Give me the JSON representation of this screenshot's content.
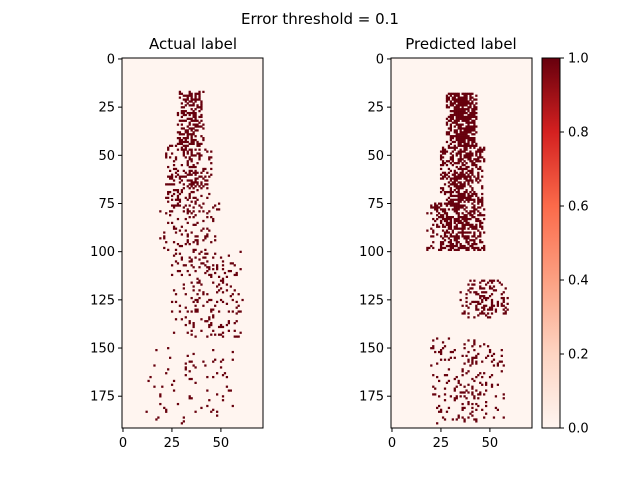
{
  "figure": {
    "suptitle": "Error threshold = 0.1"
  },
  "chart_data": [
    {
      "type": "heatmap",
      "title": "Actual label",
      "xlabel": "",
      "ylabel": "",
      "xlim": [
        0,
        72
      ],
      "ylim": [
        192,
        0
      ],
      "xticks": [
        "0",
        "25",
        "50"
      ],
      "yticks": [
        "0",
        "25",
        "50",
        "75",
        "100",
        "125",
        "150",
        "175"
      ],
      "cmap": "Reds",
      "values_range": [
        0,
        1
      ],
      "label_regions": [
        {
          "x_range": [
            28,
            42
          ],
          "y_range": [
            17,
            45
          ],
          "value": 1,
          "density": "dense"
        },
        {
          "x_range": [
            22,
            46
          ],
          "y_range": [
            45,
            75
          ],
          "value": 1,
          "density": "medium"
        },
        {
          "x_range": [
            19,
            50
          ],
          "y_range": [
            75,
            100
          ],
          "value": 1,
          "density": "sparse"
        },
        {
          "x_range": [
            25,
            62
          ],
          "y_range": [
            100,
            145
          ],
          "value": 1,
          "density": "sparse"
        },
        {
          "x_range": [
            10,
            58
          ],
          "y_range": [
            150,
            190
          ],
          "value": 1,
          "density": "very sparse"
        }
      ]
    },
    {
      "type": "heatmap",
      "title": "Predicted label",
      "xlabel": "",
      "ylabel": "",
      "xlim": [
        0,
        72
      ],
      "ylim": [
        192,
        0
      ],
      "xticks": [
        "0",
        "25",
        "50"
      ],
      "yticks": [
        "0",
        "25",
        "50",
        "75",
        "100",
        "125",
        "150",
        "175"
      ],
      "cmap": "Reds",
      "values_range": [
        0,
        1
      ],
      "label_regions": [
        {
          "x_range": [
            28,
            44
          ],
          "y_range": [
            18,
            45
          ],
          "value": 1,
          "density": "solid"
        },
        {
          "x_range": [
            25,
            48
          ],
          "y_range": [
            45,
            100
          ],
          "value": 1,
          "density": "solid patches"
        },
        {
          "x_range": [
            18,
            32
          ],
          "y_range": [
            75,
            100
          ],
          "value": 1,
          "density": "patches"
        },
        {
          "x_range": [
            35,
            60
          ],
          "y_range": [
            115,
            135
          ],
          "value": 1,
          "density": "patches"
        },
        {
          "x_range": [
            20,
            58
          ],
          "y_range": [
            145,
            190
          ],
          "value": 1,
          "density": "scattered patches"
        }
      ]
    }
  ],
  "colorbar": {
    "min": 0.0,
    "max": 1.0,
    "ticks": [
      "0.0",
      "0.2",
      "0.4",
      "0.6",
      "0.8",
      "1.0"
    ],
    "colors": {
      "low": "#fff5f0",
      "c1": "#fcbba1",
      "c2": "#fc9272",
      "c3": "#fb6a4a",
      "c4": "#de2d26",
      "high": "#67000d"
    }
  }
}
